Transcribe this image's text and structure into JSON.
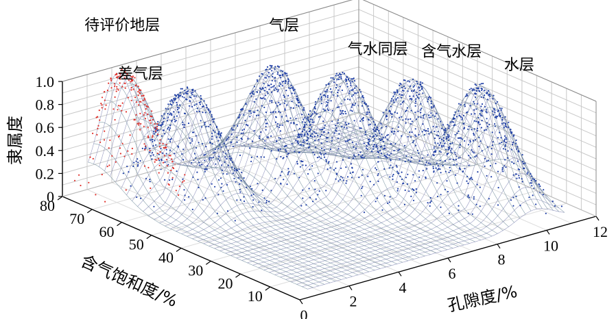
{
  "chart_data": {
    "type": "3d-surface-scatter",
    "title": "",
    "axes": {
      "x": {
        "label": "孔隙度/%",
        "ticks": [
          0,
          2,
          4,
          6,
          8,
          10,
          12
        ],
        "range": [
          0,
          12
        ]
      },
      "y": {
        "label": "含气饱和度/%",
        "ticks": [
          10,
          20,
          30,
          40,
          50,
          60,
          70,
          80
        ],
        "range": [
          0,
          80
        ]
      },
      "z": {
        "label": "隶属度",
        "ticks": [
          "0",
          "0.2",
          "0.4",
          "0.6",
          "0.8",
          "1.0"
        ],
        "range": [
          0,
          1
        ]
      }
    },
    "grid": true,
    "series": [
      {
        "name": "差气层",
        "peak_x": 3.0,
        "peak_y": 62,
        "peak_z": 0.95,
        "color": "#1f3fa6",
        "points": 350
      },
      {
        "name": "气层",
        "peak_x": 6.0,
        "peak_y": 58,
        "peak_z": 1.0,
        "color": "#1f3fa6",
        "points": 380
      },
      {
        "name": "气水同层",
        "peak_x": 7.3,
        "peak_y": 46,
        "peak_z": 1.0,
        "color": "#1f3fa6",
        "points": 380
      },
      {
        "name": "含气水层",
        "peak_x": 8.7,
        "peak_y": 34,
        "peak_z": 1.0,
        "color": "#1f3fa6",
        "points": 360
      },
      {
        "name": "水层",
        "peak_x": 10.0,
        "peak_y": 22,
        "peak_z": 1.0,
        "color": "#1f3fa6",
        "points": 360
      },
      {
        "name": "待评价地层",
        "peak_x": 2.0,
        "peak_y": 76,
        "peak_z": 1.0,
        "color": "#e0302a",
        "points": 320
      }
    ],
    "colors": {
      "surface": "#5f7f8f",
      "scatter_main": "#1f3fa6",
      "scatter_eval": "#e0302a",
      "grid": "#c8c8c8",
      "flat_mesh": "#6b6fa8"
    }
  }
}
